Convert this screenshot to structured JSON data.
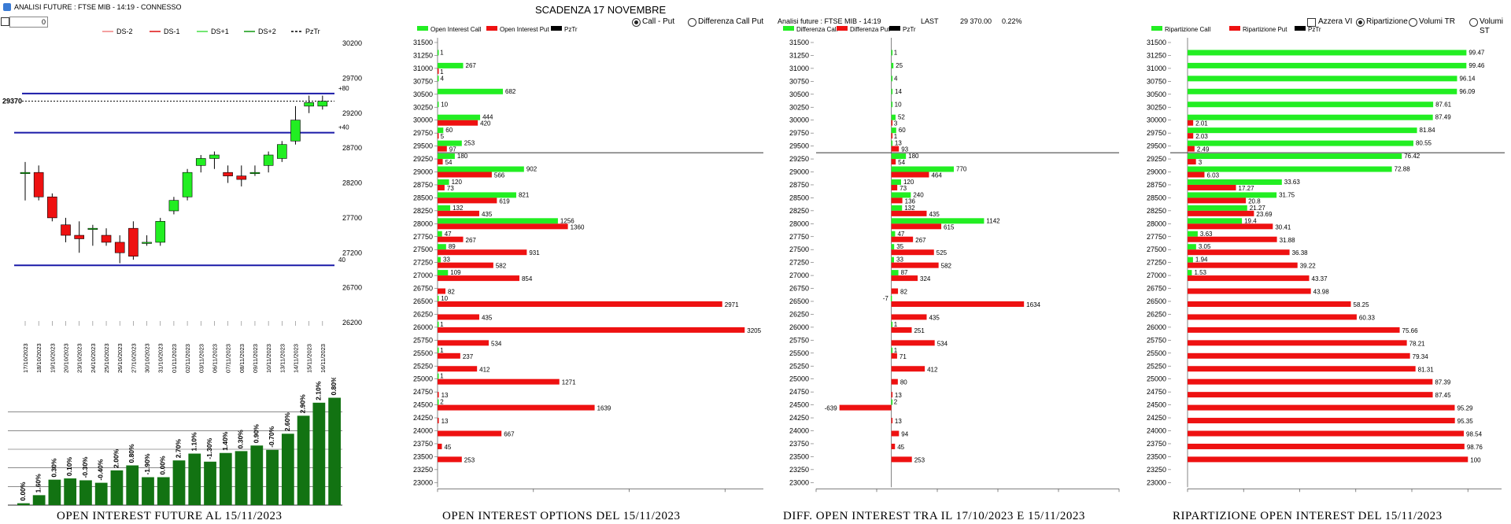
{
  "window": {
    "title": "ANALISI FUTURE : FTSE MIB - 14:19 - CONNESSO"
  },
  "controls": {
    "input_value": "0",
    "scadenza": "SCADENZA 17 NOVEMBRE",
    "radio_call_put": "Call - Put",
    "radio_diff": "Differenza Call Put",
    "analisi_info": "Analisi future : FTSE MIB - 14:19",
    "last_label": "LAST",
    "last_value": "29 370.00",
    "last_change": "0.22%",
    "azzera": "Azzera VI",
    "ripartizione": "Ripartizione",
    "volumi_tr": "Volumi TR",
    "volumi_st": "Volumi ST"
  },
  "captions": {
    "c1": "OPEN INTEREST FUTURE AL 15/11/2023",
    "c2": "OPEN INTEREST OPTIONS DEL 15/11/2023",
    "c3": "DIFF. OPEN INTEREST TRA IL 17/10/2023 E 15/11/2023",
    "c4": "RIPARTIZIONE OPEN INTEREST DEL 15/11/2023"
  },
  "colors": {
    "green": "#22ee22",
    "red": "#ee1111",
    "blue": "#1a1aa8",
    "darkgreen": "#127312"
  },
  "chart_data": [
    {
      "type": "candlestick",
      "legend": [
        "DS-2",
        "DS-1",
        "DS+1",
        "DS+2",
        "PzTr"
      ],
      "ylim": [
        26200,
        30200
      ],
      "yticks": [
        "30200",
        "29700",
        "29200",
        "28700",
        "28200",
        "27700",
        "27200",
        "26700",
        "26200"
      ],
      "dates": [
        "17/10/2023",
        "18/10/2023",
        "19/10/2023",
        "20/10/2023",
        "23/10/2023",
        "24/10/2023",
        "25/10/2023",
        "26/10/2023",
        "27/10/2023",
        "30/10/2023",
        "31/10/2023",
        "01/11/2023",
        "02/11/2023",
        "03/11/2023",
        "06/11/2023",
        "07/11/2023",
        "08/11/2023",
        "09/11/2023",
        "10/11/2023",
        "13/11/2023",
        "14/11/2023",
        "15/11/2023",
        "16/11/2023"
      ],
      "ohlc": [
        [
          28350,
          28500,
          27950,
          28350
        ],
        [
          28350,
          28450,
          27950,
          28000
        ],
        [
          28000,
          28050,
          27650,
          27700
        ],
        [
          27600,
          27700,
          27350,
          27450
        ],
        [
          27450,
          27650,
          27200,
          27400
        ],
        [
          27550,
          27600,
          27300,
          27550
        ],
        [
          27450,
          27550,
          27300,
          27350
        ],
        [
          27350,
          27450,
          27050,
          27200
        ],
        [
          27550,
          27650,
          27100,
          27150
        ],
        [
          27350,
          27450,
          27300,
          27350
        ],
        [
          27350,
          27700,
          27300,
          27650
        ],
        [
          27800,
          28000,
          27750,
          27950
        ],
        [
          28000,
          28400,
          27950,
          28350
        ],
        [
          28450,
          28600,
          28350,
          28550
        ],
        [
          28550,
          28650,
          28400,
          28600
        ],
        [
          28350,
          28450,
          28200,
          28300
        ],
        [
          28300,
          28450,
          28150,
          28250
        ],
        [
          28350,
          28450,
          28300,
          28350
        ],
        [
          28450,
          28650,
          28350,
          28600
        ],
        [
          28550,
          28800,
          28500,
          28750
        ],
        [
          28800,
          29300,
          28750,
          29100
        ],
        [
          29300,
          29450,
          29200,
          29350
        ],
        [
          29300,
          29450,
          29250,
          29370
        ]
      ],
      "pztr_value": 29370,
      "pztr_label": "29370",
      "upper_line": 29480,
      "upper_label": "+80",
      "middle_line": 28920,
      "middle_label": "+40",
      "lower_line": 27020,
      "lower_label": "40"
    },
    {
      "type": "bar",
      "labels": [
        "0.00%",
        "1.60%",
        "0.30%",
        "0.10%",
        "-0.30%",
        "-0.40%",
        "2.00%",
        "0.80%",
        "-1.90%",
        "0.00%",
        "2.70%",
        "1.10%",
        "-1.30%",
        "1.40%",
        "0.30%",
        "0.90%",
        "-0.70%",
        "2.60%",
        "2.90%",
        "2.10%",
        "0.80%"
      ],
      "values": [
        0.0,
        1.6,
        4.1,
        4.3,
        4.0,
        3.6,
        5.6,
        6.4,
        4.5,
        4.5,
        7.2,
        8.3,
        7.0,
        8.4,
        8.7,
        9.6,
        8.9,
        11.5,
        14.4,
        16.5,
        17.3
      ]
    },
    {
      "type": "bar",
      "orientation": "horizontal",
      "legend": [
        "Open Interest Call",
        "Open Interest Put",
        "PzTr"
      ],
      "strikes": [
        "31500",
        "31250",
        "31000",
        "30750",
        "30500",
        "30250",
        "30000",
        "29750",
        "29500",
        "29250",
        "29000",
        "28750",
        "28500",
        "28250",
        "28000",
        "27750",
        "27500",
        "27250",
        "27000",
        "26750",
        "26500",
        "26250",
        "26000",
        "25750",
        "25500",
        "25250",
        "25000",
        "24750",
        "24500",
        "24250",
        "24000",
        "23750",
        "23500",
        "23250",
        "23000"
      ],
      "call": [
        null,
        1,
        267,
        4,
        682,
        10,
        444,
        60,
        253,
        180,
        902,
        120,
        821,
        132,
        1256,
        47,
        89,
        33,
        109,
        null,
        10,
        null,
        1,
        null,
        1,
        null,
        1,
        null,
        2,
        null,
        null,
        null,
        null,
        null,
        null
      ],
      "put": [
        null,
        null,
        1,
        null,
        null,
        null,
        420,
        5,
        97,
        54,
        566,
        73,
        619,
        435,
        1360,
        267,
        931,
        582,
        854,
        82,
        2971,
        435,
        3205,
        534,
        237,
        412,
        1271,
        13,
        1639,
        13,
        667,
        45,
        253,
        null,
        null
      ],
      "xticks": [
        "0",
        "1000",
        "2000",
        "3000"
      ],
      "xlim": [
        0,
        3400
      ],
      "pztr_strike": 29370
    },
    {
      "type": "bar",
      "orientation": "horizontal",
      "legend": [
        "Differenza Call",
        "Differenza Put",
        "PzTr"
      ],
      "strikes": [
        "31500",
        "31250",
        "31000",
        "30750",
        "30500",
        "30250",
        "30000",
        "29750",
        "29500",
        "29250",
        "29000",
        "28750",
        "28500",
        "28250",
        "28000",
        "27750",
        "27500",
        "27250",
        "27000",
        "26750",
        "26500",
        "26250",
        "26000",
        "25750",
        "25500",
        "25250",
        "25000",
        "24750",
        "24500",
        "24250",
        "24000",
        "23750",
        "23500",
        "23250",
        "23000"
      ],
      "call": [
        null,
        1,
        25,
        4,
        14,
        10,
        52,
        60,
        13,
        180,
        770,
        120,
        240,
        132,
        1142,
        47,
        35,
        33,
        87,
        null,
        -7,
        null,
        1,
        null,
        1,
        null,
        null,
        null,
        2,
        null,
        null,
        null,
        null,
        null,
        null
      ],
      "put": [
        null,
        null,
        null,
        null,
        null,
        null,
        3,
        1,
        93,
        54,
        464,
        73,
        136,
        435,
        615,
        267,
        525,
        582,
        324,
        82,
        1634,
        435,
        251,
        534,
        71,
        412,
        80,
        13,
        -639,
        13,
        94,
        45,
        253,
        null,
        null
      ],
      "xticks": [
        "-926.55",
        "-180.24",
        "566.07",
        "1312.38",
        "2058.69",
        "2805"
      ],
      "xlim": [
        -926.55,
        2805
      ],
      "pztr_strike": 29370
    },
    {
      "type": "bar",
      "orientation": "horizontal",
      "legend": [
        "Ripartizione Call",
        "Ripartizione Put",
        "PzTr"
      ],
      "strikes": [
        "31500",
        "31250",
        "31000",
        "30750",
        "30500",
        "30250",
        "30000",
        "29750",
        "29500",
        "29250",
        "29000",
        "28750",
        "28500",
        "28250",
        "28000",
        "27750",
        "27500",
        "27250",
        "27000",
        "26750",
        "26500",
        "26250",
        "26000",
        "25750",
        "25500",
        "25250",
        "25000",
        "24750",
        "24500",
        "24250",
        "24000",
        "23750",
        "23500",
        "23250",
        "23000"
      ],
      "call": [
        null,
        99.47,
        99.46,
        96.14,
        96.09,
        87.61,
        87.49,
        81.84,
        80.55,
        76.42,
        72.88,
        33.63,
        31.75,
        21.27,
        19.4,
        3.63,
        3.05,
        1.94,
        1.53,
        null,
        null,
        null,
        null,
        null,
        null,
        null,
        null,
        null,
        null,
        null,
        null,
        null,
        null,
        null,
        null
      ],
      "put": [
        null,
        null,
        null,
        null,
        null,
        null,
        2.01,
        2.03,
        2.49,
        3,
        6.03,
        17.27,
        20.8,
        23.69,
        30.41,
        31.88,
        36.38,
        39.22,
        43.37,
        43.98,
        58.25,
        60.33,
        75.66,
        78.21,
        79.34,
        81.31,
        87.39,
        87.45,
        95.29,
        95.35,
        98.54,
        98.76,
        100,
        null,
        null
      ],
      "xticks": [
        "0",
        "20",
        "40",
        "60",
        "80",
        "100"
      ],
      "xlim": [
        0,
        112
      ],
      "pztr_strike": 29370
    }
  ]
}
